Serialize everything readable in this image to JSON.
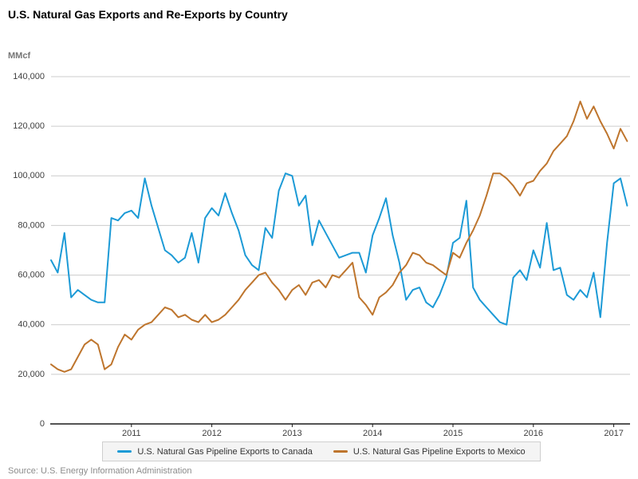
{
  "header": {
    "title": "U.S. Natural Gas Exports and Re-Exports by Country",
    "unit_label": "MMcf"
  },
  "footer": {
    "source": "Source: U.S. Energy Information Administration"
  },
  "colors": {
    "canada_line": "#1C9AD6",
    "mexico_line": "#BE752D",
    "gridline": "#cccccc",
    "axis": "#1a1a1a",
    "tick_text": "#404040",
    "legend_bg": "#f4f4f4",
    "legend_border": "#cfcfcf"
  },
  "chart_data": {
    "type": "line",
    "title": "U.S. Natural Gas Exports and Re-Exports by Country",
    "xlabel": "",
    "ylabel": "MMcf",
    "x_unit": "month",
    "x_start": "2010-01",
    "x_end": "2017-03",
    "x_tick_labels": [
      "2011",
      "2012",
      "2013",
      "2014",
      "2015",
      "2016",
      "2017"
    ],
    "ylim": [
      0,
      140000
    ],
    "y_tick_interval": 20000,
    "y_tick_labels": [
      "0",
      "20,000",
      "40,000",
      "60,000",
      "80,000",
      "100,000",
      "120,000",
      "140,000"
    ],
    "grid": "horizontal",
    "legend_position": "bottom",
    "series": [
      {
        "name": "U.S. Natural Gas Pipeline Exports to Canada",
        "color": "#1C9AD6",
        "values": [
          66000,
          61000,
          77000,
          51000,
          54000,
          52000,
          50000,
          49000,
          49000,
          83000,
          82000,
          85000,
          86000,
          83000,
          99000,
          88000,
          79000,
          70000,
          68000,
          65000,
          67000,
          77000,
          65000,
          83000,
          87000,
          84000,
          93000,
          85000,
          78000,
          68000,
          64000,
          62000,
          79000,
          75000,
          94000,
          101000,
          100000,
          88000,
          92000,
          72000,
          82000,
          77000,
          72000,
          67000,
          68000,
          69000,
          69000,
          61000,
          76000,
          83000,
          91000,
          76000,
          65000,
          50000,
          54000,
          55000,
          49000,
          47000,
          52000,
          59000,
          73000,
          75000,
          90000,
          55000,
          50000,
          47000,
          44000,
          41000,
          40000,
          59000,
          62000,
          58000,
          70000,
          63000,
          81000,
          62000,
          63000,
          52000,
          50000,
          54000,
          51000,
          61000,
          43000,
          73000,
          97000,
          99000,
          88000
        ]
      },
      {
        "name": "U.S. Natural Gas Pipeline Exports to Mexico",
        "color": "#BE752D",
        "values": [
          24000,
          22000,
          21000,
          22000,
          27000,
          32000,
          34000,
          32000,
          22000,
          24000,
          31000,
          36000,
          34000,
          38000,
          40000,
          41000,
          44000,
          47000,
          46000,
          43000,
          44000,
          42000,
          41000,
          44000,
          41000,
          42000,
          44000,
          47000,
          50000,
          54000,
          57000,
          60000,
          61000,
          57000,
          54000,
          50000,
          54000,
          56000,
          52000,
          57000,
          58000,
          55000,
          60000,
          59000,
          62000,
          65000,
          51000,
          48000,
          44000,
          51000,
          53000,
          56000,
          61000,
          64000,
          69000,
          68000,
          65000,
          64000,
          62000,
          60000,
          69000,
          67000,
          73000,
          78000,
          84000,
          92000,
          101000,
          101000,
          99000,
          96000,
          92000,
          97000,
          98000,
          102000,
          105000,
          110000,
          113000,
          116000,
          122000,
          130000,
          123000,
          128000,
          122000,
          117000,
          111000,
          119000,
          114000
        ]
      }
    ]
  }
}
